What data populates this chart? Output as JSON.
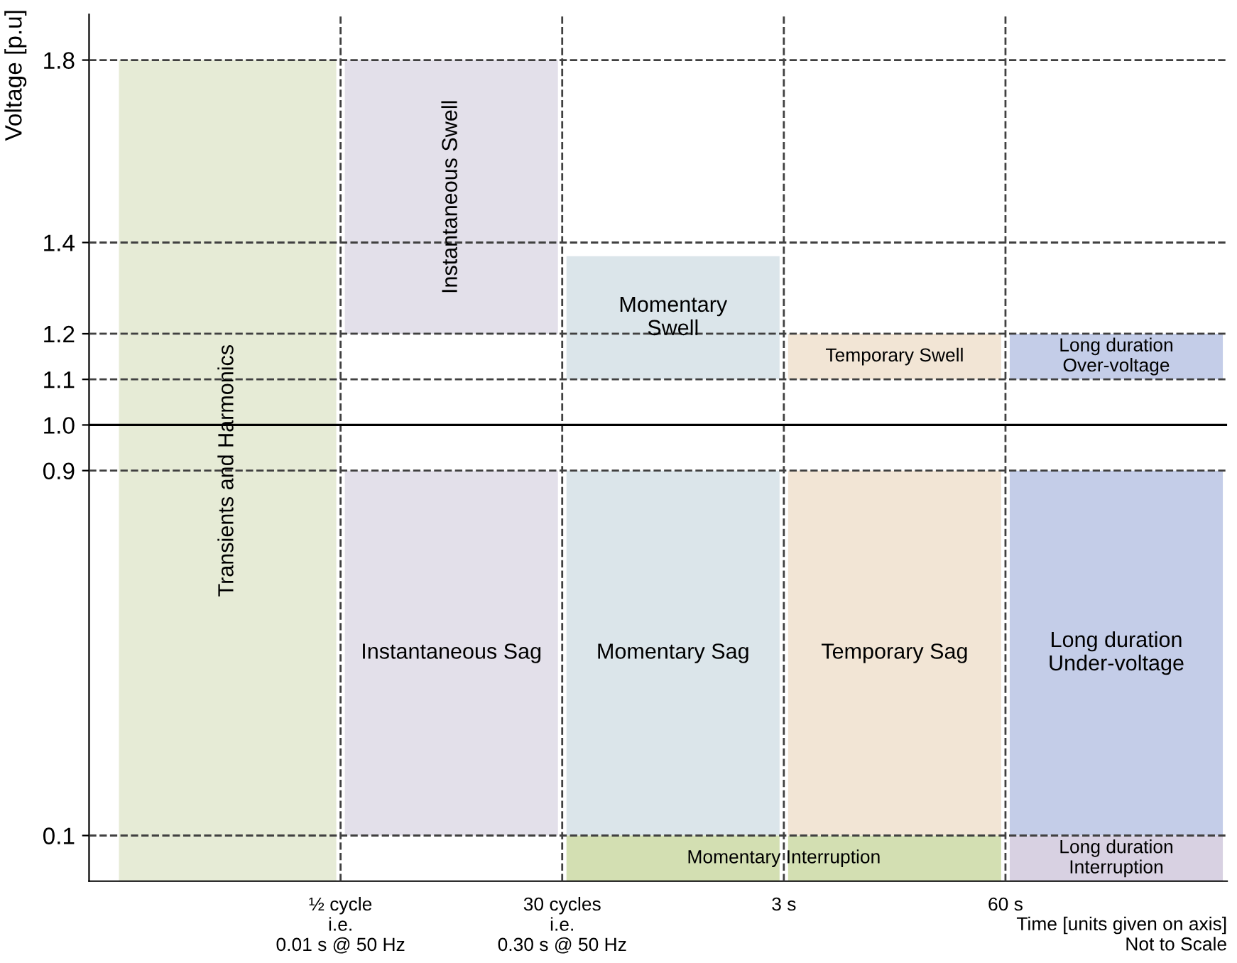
{
  "chart_data": {
    "type": "bar",
    "ylabel": "Voltage [p.u]",
    "xlabel": "Time [units given on axis]\nNot to Scale",
    "categories": [
      null,
      null,
      null,
      null,
      null
    ],
    "series": [
      {
        "name": "Transients and Harmonics",
        "color": "#e6ebd6",
        "values": [
          1.8,
          null,
          null,
          null,
          null
        ],
        "base": [
          0,
          null,
          null,
          null,
          null
        ]
      },
      {
        "name": "Instantaneous Swell",
        "color": "#e3e0ea",
        "values": [
          null,
          0.6,
          null,
          null,
          null
        ],
        "base": [
          null,
          1.2,
          null,
          null,
          null
        ]
      },
      {
        "name": "Instantaneous Sag",
        "color": "#e3e0ea",
        "values": [
          null,
          0.8,
          null,
          null,
          null
        ],
        "base": [
          null,
          0.1,
          null,
          null,
          null
        ]
      },
      {
        "name": "Momentary\nSwell",
        "color": "#dbe5ea",
        "values": [
          null,
          null,
          0.27,
          null,
          null
        ],
        "base": [
          null,
          null,
          1.1,
          null,
          null
        ]
      },
      {
        "name": "Momentary Sag",
        "color": "#dbe5ea",
        "values": [
          null,
          null,
          0.8,
          null,
          null
        ],
        "base": [
          null,
          null,
          0.1,
          null,
          null
        ]
      },
      {
        "name": "Momentary Interruption",
        "color": "#d3dfb2",
        "values": [
          null,
          null,
          0.1,
          0.1,
          null
        ],
        "base": [
          null,
          null,
          0,
          0,
          null
        ]
      },
      {
        "name": "Temporary Swell",
        "color": "#f2e5d5",
        "values": [
          null,
          null,
          null,
          0.1,
          null
        ],
        "base": [
          null,
          null,
          null,
          1.1,
          null
        ]
      },
      {
        "name": "Temporary Sag",
        "color": "#f2e5d5",
        "values": [
          null,
          null,
          null,
          0.8,
          null
        ],
        "base": [
          null,
          null,
          null,
          0.1,
          null
        ]
      },
      {
        "name": "Long duration\nOver-voltage",
        "color": "#c4cde8",
        "values": [
          null,
          null,
          null,
          null,
          0.1
        ],
        "base": [
          null,
          null,
          null,
          null,
          1.1
        ]
      },
      {
        "name": "Long duration\nUnder-voltage",
        "color": "#c4cde8",
        "values": [
          null,
          null,
          null,
          null,
          0.8
        ],
        "base": [
          null,
          null,
          null,
          null,
          0.1
        ]
      },
      {
        "name": "Long duration\nInterruption",
        "color": "#d8d1e2",
        "values": [
          null,
          null,
          null,
          null,
          0.1
        ],
        "base": [
          null,
          null,
          null,
          null,
          0
        ]
      }
    ],
    "ylim": [
      0,
      1.9
    ],
    "yticks": [
      0.1,
      0.9,
      {
        "value": 1.0,
        "label": "1.0"
      },
      1.1,
      1.2,
      1.4,
      1.8
    ],
    "grid": true,
    "ref_lines": [
      {
        "axis": "y",
        "value": 1.0,
        "color": "#000000",
        "line_style": "solid"
      }
    ],
    "annotations": [
      "½ cycle\ni.e.\n0.01 s @ 50 Hz",
      "30 cycles\ni.e.\n0.30 s @ 50 Hz",
      "3 s",
      "60 s"
    ]
  }
}
